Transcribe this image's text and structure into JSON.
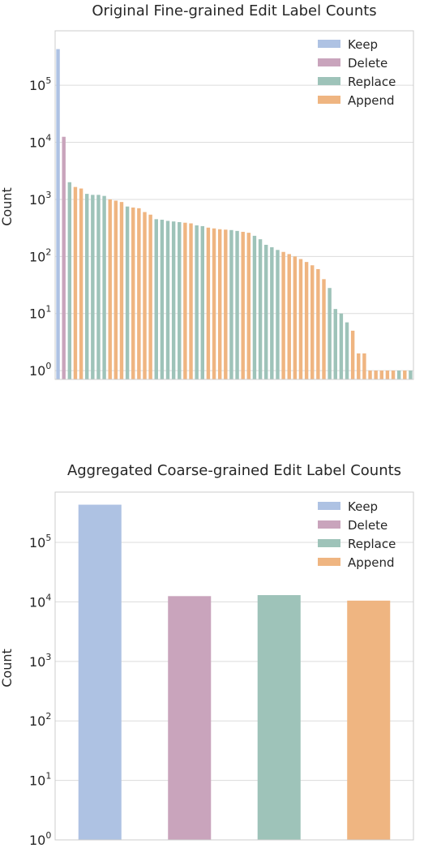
{
  "colors": {
    "Keep": "#aec2e3",
    "Delete": "#c9a4bc",
    "Replace": "#9ec3b9",
    "Append": "#efb581",
    "grid": "#dcdcdc",
    "spine": "#cccccc"
  },
  "chart_data": [
    {
      "type": "bar",
      "title": "Original Fine-grained Edit Label Counts",
      "xlabel": "",
      "ylabel": "Count",
      "yscale": "log",
      "ylim": [
        0.7,
        900000
      ],
      "grid": true,
      "legend_position": "top-right",
      "legend": [
        "Keep",
        "Delete",
        "Replace",
        "Append"
      ],
      "yticks": [
        {
          "base": "10",
          "exp": "0"
        },
        {
          "base": "10",
          "exp": "1"
        },
        {
          "base": "10",
          "exp": "2"
        },
        {
          "base": "10",
          "exp": "3"
        },
        {
          "base": "10",
          "exp": "4"
        },
        {
          "base": "10",
          "exp": "5"
        }
      ],
      "bars": [
        {
          "label": "Keep",
          "value": 430000
        },
        {
          "label": "Delete",
          "value": 12500
        },
        {
          "label": "Replace",
          "value": 2000
        },
        {
          "label": "Append",
          "value": 1650
        },
        {
          "label": "Append",
          "value": 1550
        },
        {
          "label": "Replace",
          "value": 1250
        },
        {
          "label": "Replace",
          "value": 1200
        },
        {
          "label": "Replace",
          "value": 1200
        },
        {
          "label": "Replace",
          "value": 1150
        },
        {
          "label": "Append",
          "value": 1000
        },
        {
          "label": "Append",
          "value": 950
        },
        {
          "label": "Append",
          "value": 900
        },
        {
          "label": "Replace",
          "value": 750
        },
        {
          "label": "Append",
          "value": 720
        },
        {
          "label": "Append",
          "value": 700
        },
        {
          "label": "Append",
          "value": 600
        },
        {
          "label": "Append",
          "value": 540
        },
        {
          "label": "Replace",
          "value": 450
        },
        {
          "label": "Replace",
          "value": 440
        },
        {
          "label": "Replace",
          "value": 420
        },
        {
          "label": "Replace",
          "value": 410
        },
        {
          "label": "Replace",
          "value": 400
        },
        {
          "label": "Append",
          "value": 390
        },
        {
          "label": "Append",
          "value": 380
        },
        {
          "label": "Replace",
          "value": 350
        },
        {
          "label": "Replace",
          "value": 340
        },
        {
          "label": "Append",
          "value": 320
        },
        {
          "label": "Append",
          "value": 310
        },
        {
          "label": "Append",
          "value": 300
        },
        {
          "label": "Append",
          "value": 295
        },
        {
          "label": "Replace",
          "value": 290
        },
        {
          "label": "Replace",
          "value": 280
        },
        {
          "label": "Append",
          "value": 270
        },
        {
          "label": "Append",
          "value": 260
        },
        {
          "label": "Replace",
          "value": 230
        },
        {
          "label": "Replace",
          "value": 200
        },
        {
          "label": "Replace",
          "value": 160
        },
        {
          "label": "Replace",
          "value": 145
        },
        {
          "label": "Replace",
          "value": 130
        },
        {
          "label": "Append",
          "value": 120
        },
        {
          "label": "Append",
          "value": 110
        },
        {
          "label": "Append",
          "value": 100
        },
        {
          "label": "Append",
          "value": 90
        },
        {
          "label": "Append",
          "value": 80
        },
        {
          "label": "Append",
          "value": 70
        },
        {
          "label": "Append",
          "value": 60
        },
        {
          "label": "Append",
          "value": 40
        },
        {
          "label": "Replace",
          "value": 28
        },
        {
          "label": "Replace",
          "value": 12
        },
        {
          "label": "Replace",
          "value": 10
        },
        {
          "label": "Replace",
          "value": 7
        },
        {
          "label": "Append",
          "value": 5
        },
        {
          "label": "Append",
          "value": 2
        },
        {
          "label": "Append",
          "value": 2
        },
        {
          "label": "Append",
          "value": 1
        },
        {
          "label": "Append",
          "value": 1
        },
        {
          "label": "Append",
          "value": 1
        },
        {
          "label": "Append",
          "value": 1
        },
        {
          "label": "Append",
          "value": 1
        },
        {
          "label": "Replace",
          "value": 1
        },
        {
          "label": "Append",
          "value": 1
        },
        {
          "label": "Replace",
          "value": 1
        }
      ]
    },
    {
      "type": "bar",
      "title": "Aggregated Coarse-grained Edit Label Counts",
      "xlabel": "",
      "ylabel": "Count",
      "yscale": "log",
      "ylim": [
        1,
        700000
      ],
      "grid": true,
      "legend_position": "top-right",
      "legend": [
        "Keep",
        "Delete",
        "Replace",
        "Append"
      ],
      "yticks": [
        {
          "base": "10",
          "exp": "0"
        },
        {
          "base": "10",
          "exp": "1"
        },
        {
          "base": "10",
          "exp": "2"
        },
        {
          "base": "10",
          "exp": "3"
        },
        {
          "base": "10",
          "exp": "4"
        },
        {
          "base": "10",
          "exp": "5"
        }
      ],
      "bars": [
        {
          "label": "Keep",
          "value": 430000
        },
        {
          "label": "Delete",
          "value": 12500
        },
        {
          "label": "Replace",
          "value": 13000
        },
        {
          "label": "Append",
          "value": 10500
        }
      ]
    }
  ]
}
